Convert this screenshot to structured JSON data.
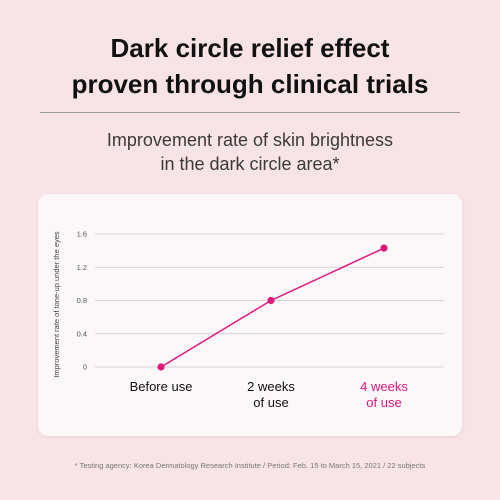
{
  "headline": {
    "line1": "Dark circle relief effect",
    "line2": "proven through clinical trials"
  },
  "subtitle": {
    "line1": "Improvement rate of skin brightness",
    "line2": "in the dark circle area*"
  },
  "footnote": "* Testing agency: Korea Dermatology Research Institute / Period: Feb. 15 to March 15, 2021 / 22 subjects",
  "colors": {
    "background": "#f8e3e6",
    "card": "#fcf7f8",
    "accent": "#e0197d",
    "text": "#111111",
    "grid": "#c8c8c8"
  },
  "chart_data": {
    "type": "line",
    "categories": [
      "Before use",
      "2 weeks of use",
      "4 weeks of use"
    ],
    "category_lines": [
      [
        "Before use"
      ],
      [
        "2 weeks",
        "of use"
      ],
      [
        "4 weeks",
        "of use"
      ]
    ],
    "highlight_index": 2,
    "values": [
      0,
      0.8,
      1.43
    ],
    "ylabel": "Improvement rate of tone-up under the eyes",
    "yticks": [
      0,
      0.4,
      0.8,
      1.2,
      1.6
    ],
    "ylim": [
      0,
      1.6
    ],
    "grid": true
  }
}
